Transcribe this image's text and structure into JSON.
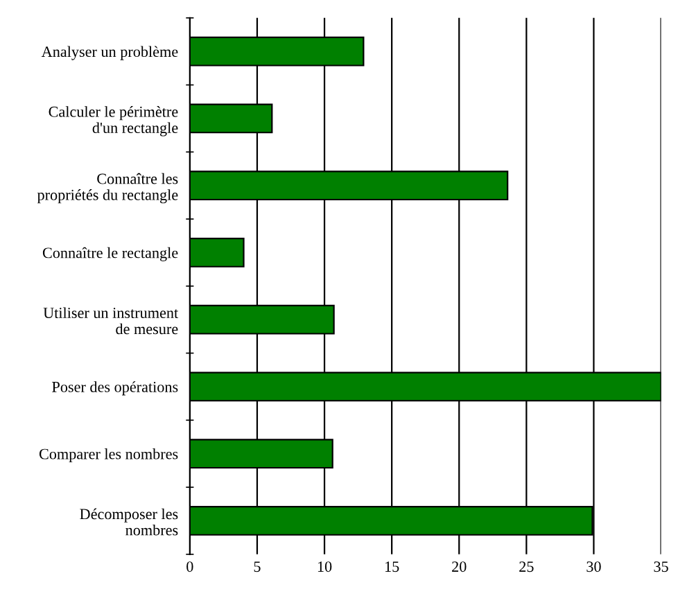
{
  "chart_data": {
    "type": "bar",
    "orientation": "horizontal",
    "categories": [
      "Analyser un problème",
      "Calculer le périmètre\nd'un rectangle",
      "Connaître les\npropriétés du rectangle",
      "Connaître le rectangle",
      "Utiliser un instrument\nde mesure",
      "Poser des opérations",
      "Comparer les nombres",
      "Décomposer les\nnombres"
    ],
    "values": [
      12.9,
      6.1,
      23.6,
      4.0,
      10.7,
      35,
      10.6,
      29.9
    ],
    "color": "#008000",
    "xlim": [
      0,
      35
    ],
    "xticks": [
      0,
      5,
      10,
      15,
      20,
      25,
      30,
      35
    ],
    "grid": "x"
  }
}
